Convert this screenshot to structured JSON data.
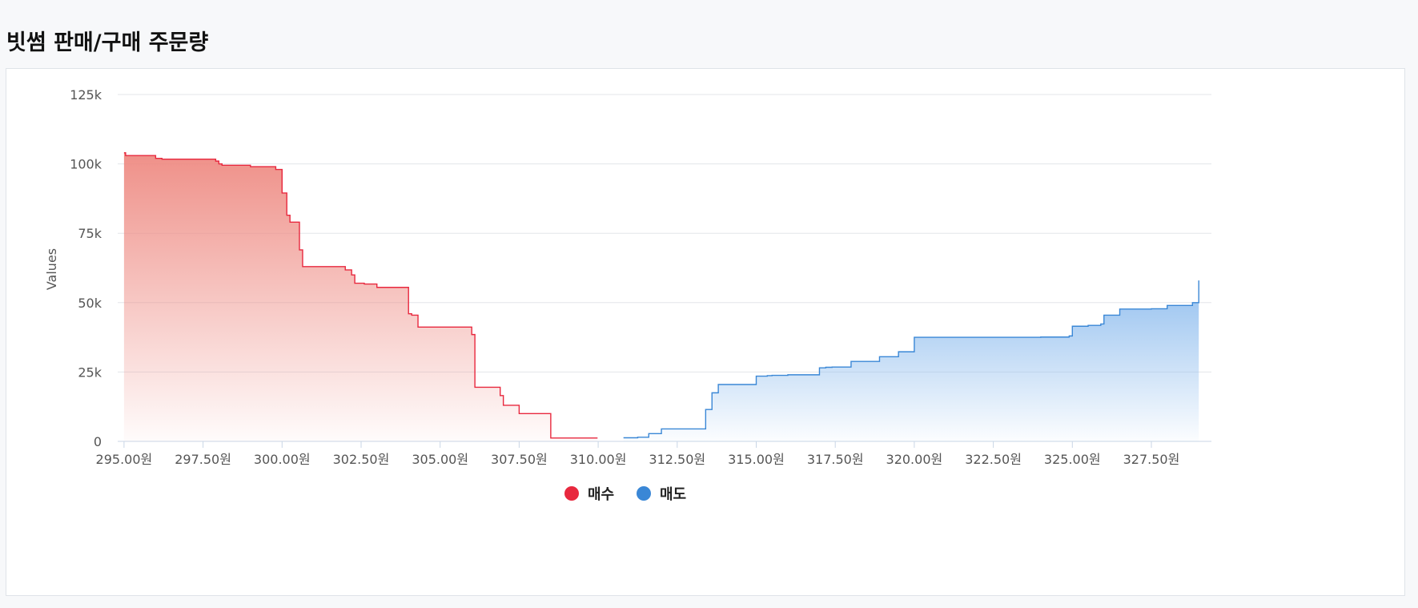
{
  "page": {
    "title": "빗썸 판매/구매 주문량"
  },
  "chart_data": {
    "type": "area",
    "title": "",
    "xlabel": "",
    "ylabel": "Values",
    "xlim": [
      294.8,
      329.4
    ],
    "ylim": [
      0,
      125000
    ],
    "y_ticks": [
      0,
      25000,
      50000,
      75000,
      100000,
      125000
    ],
    "y_tick_labels": [
      "0",
      "25k",
      "50k",
      "75k",
      "100k",
      "125k"
    ],
    "x_ticks": [
      295,
      297.5,
      300,
      302.5,
      305,
      307.5,
      310,
      312.5,
      315,
      317.5,
      320,
      322.5,
      325,
      327.5
    ],
    "x_tick_labels": [
      "295.00원",
      "297.50원",
      "300.00원",
      "302.50원",
      "305.00원",
      "307.50원",
      "310.00원",
      "312.50원",
      "315.00원",
      "317.50원",
      "320.00원",
      "322.50원",
      "325.00원",
      "327.50원"
    ],
    "grid": true,
    "legend_position": "bottom-center",
    "series": [
      {
        "name": "매수",
        "color": "#e8283e",
        "step": "left",
        "points": [
          [
            295.0,
            104000
          ],
          [
            295.05,
            103000
          ],
          [
            296.0,
            102000
          ],
          [
            296.2,
            101700
          ],
          [
            297.9,
            101000
          ],
          [
            298.0,
            100000
          ],
          [
            298.1,
            99500
          ],
          [
            299.0,
            99000
          ],
          [
            299.8,
            98000
          ],
          [
            300.0,
            89500
          ],
          [
            300.15,
            81500
          ],
          [
            300.25,
            79000
          ],
          [
            300.55,
            69000
          ],
          [
            300.65,
            63000
          ],
          [
            302.0,
            61800
          ],
          [
            302.2,
            60000
          ],
          [
            302.3,
            57000
          ],
          [
            302.6,
            56700
          ],
          [
            303.0,
            55500
          ],
          [
            304.0,
            46000
          ],
          [
            304.1,
            45500
          ],
          [
            304.3,
            41200
          ],
          [
            306.0,
            38500
          ],
          [
            306.1,
            19500
          ],
          [
            306.9,
            16500
          ],
          [
            307.0,
            13000
          ],
          [
            307.5,
            10000
          ],
          [
            308.5,
            1200
          ],
          [
            309.98,
            1200
          ]
        ]
      },
      {
        "name": "매도",
        "color": "#3a87d6",
        "step": "right",
        "points": [
          [
            310.8,
            1300
          ],
          [
            311.25,
            1500
          ],
          [
            311.6,
            2800
          ],
          [
            312.0,
            4500
          ],
          [
            313.4,
            11500
          ],
          [
            313.6,
            17500
          ],
          [
            313.8,
            20500
          ],
          [
            315.0,
            23500
          ],
          [
            315.35,
            23700
          ],
          [
            315.5,
            23800
          ],
          [
            316.0,
            24000
          ],
          [
            317.0,
            26500
          ],
          [
            317.2,
            26700
          ],
          [
            317.4,
            26800
          ],
          [
            318.0,
            28800
          ],
          [
            318.9,
            30500
          ],
          [
            319.5,
            32300
          ],
          [
            320.0,
            37500
          ],
          [
            322.0,
            37500
          ],
          [
            324.0,
            37600
          ],
          [
            324.9,
            38000
          ],
          [
            325.0,
            41500
          ],
          [
            325.5,
            41800
          ],
          [
            325.9,
            42300
          ],
          [
            326.0,
            45500
          ],
          [
            326.5,
            47700
          ],
          [
            327.0,
            47700
          ],
          [
            327.5,
            47800
          ],
          [
            328.0,
            49000
          ],
          [
            328.8,
            50000
          ],
          [
            329.0,
            58000
          ]
        ]
      }
    ]
  }
}
